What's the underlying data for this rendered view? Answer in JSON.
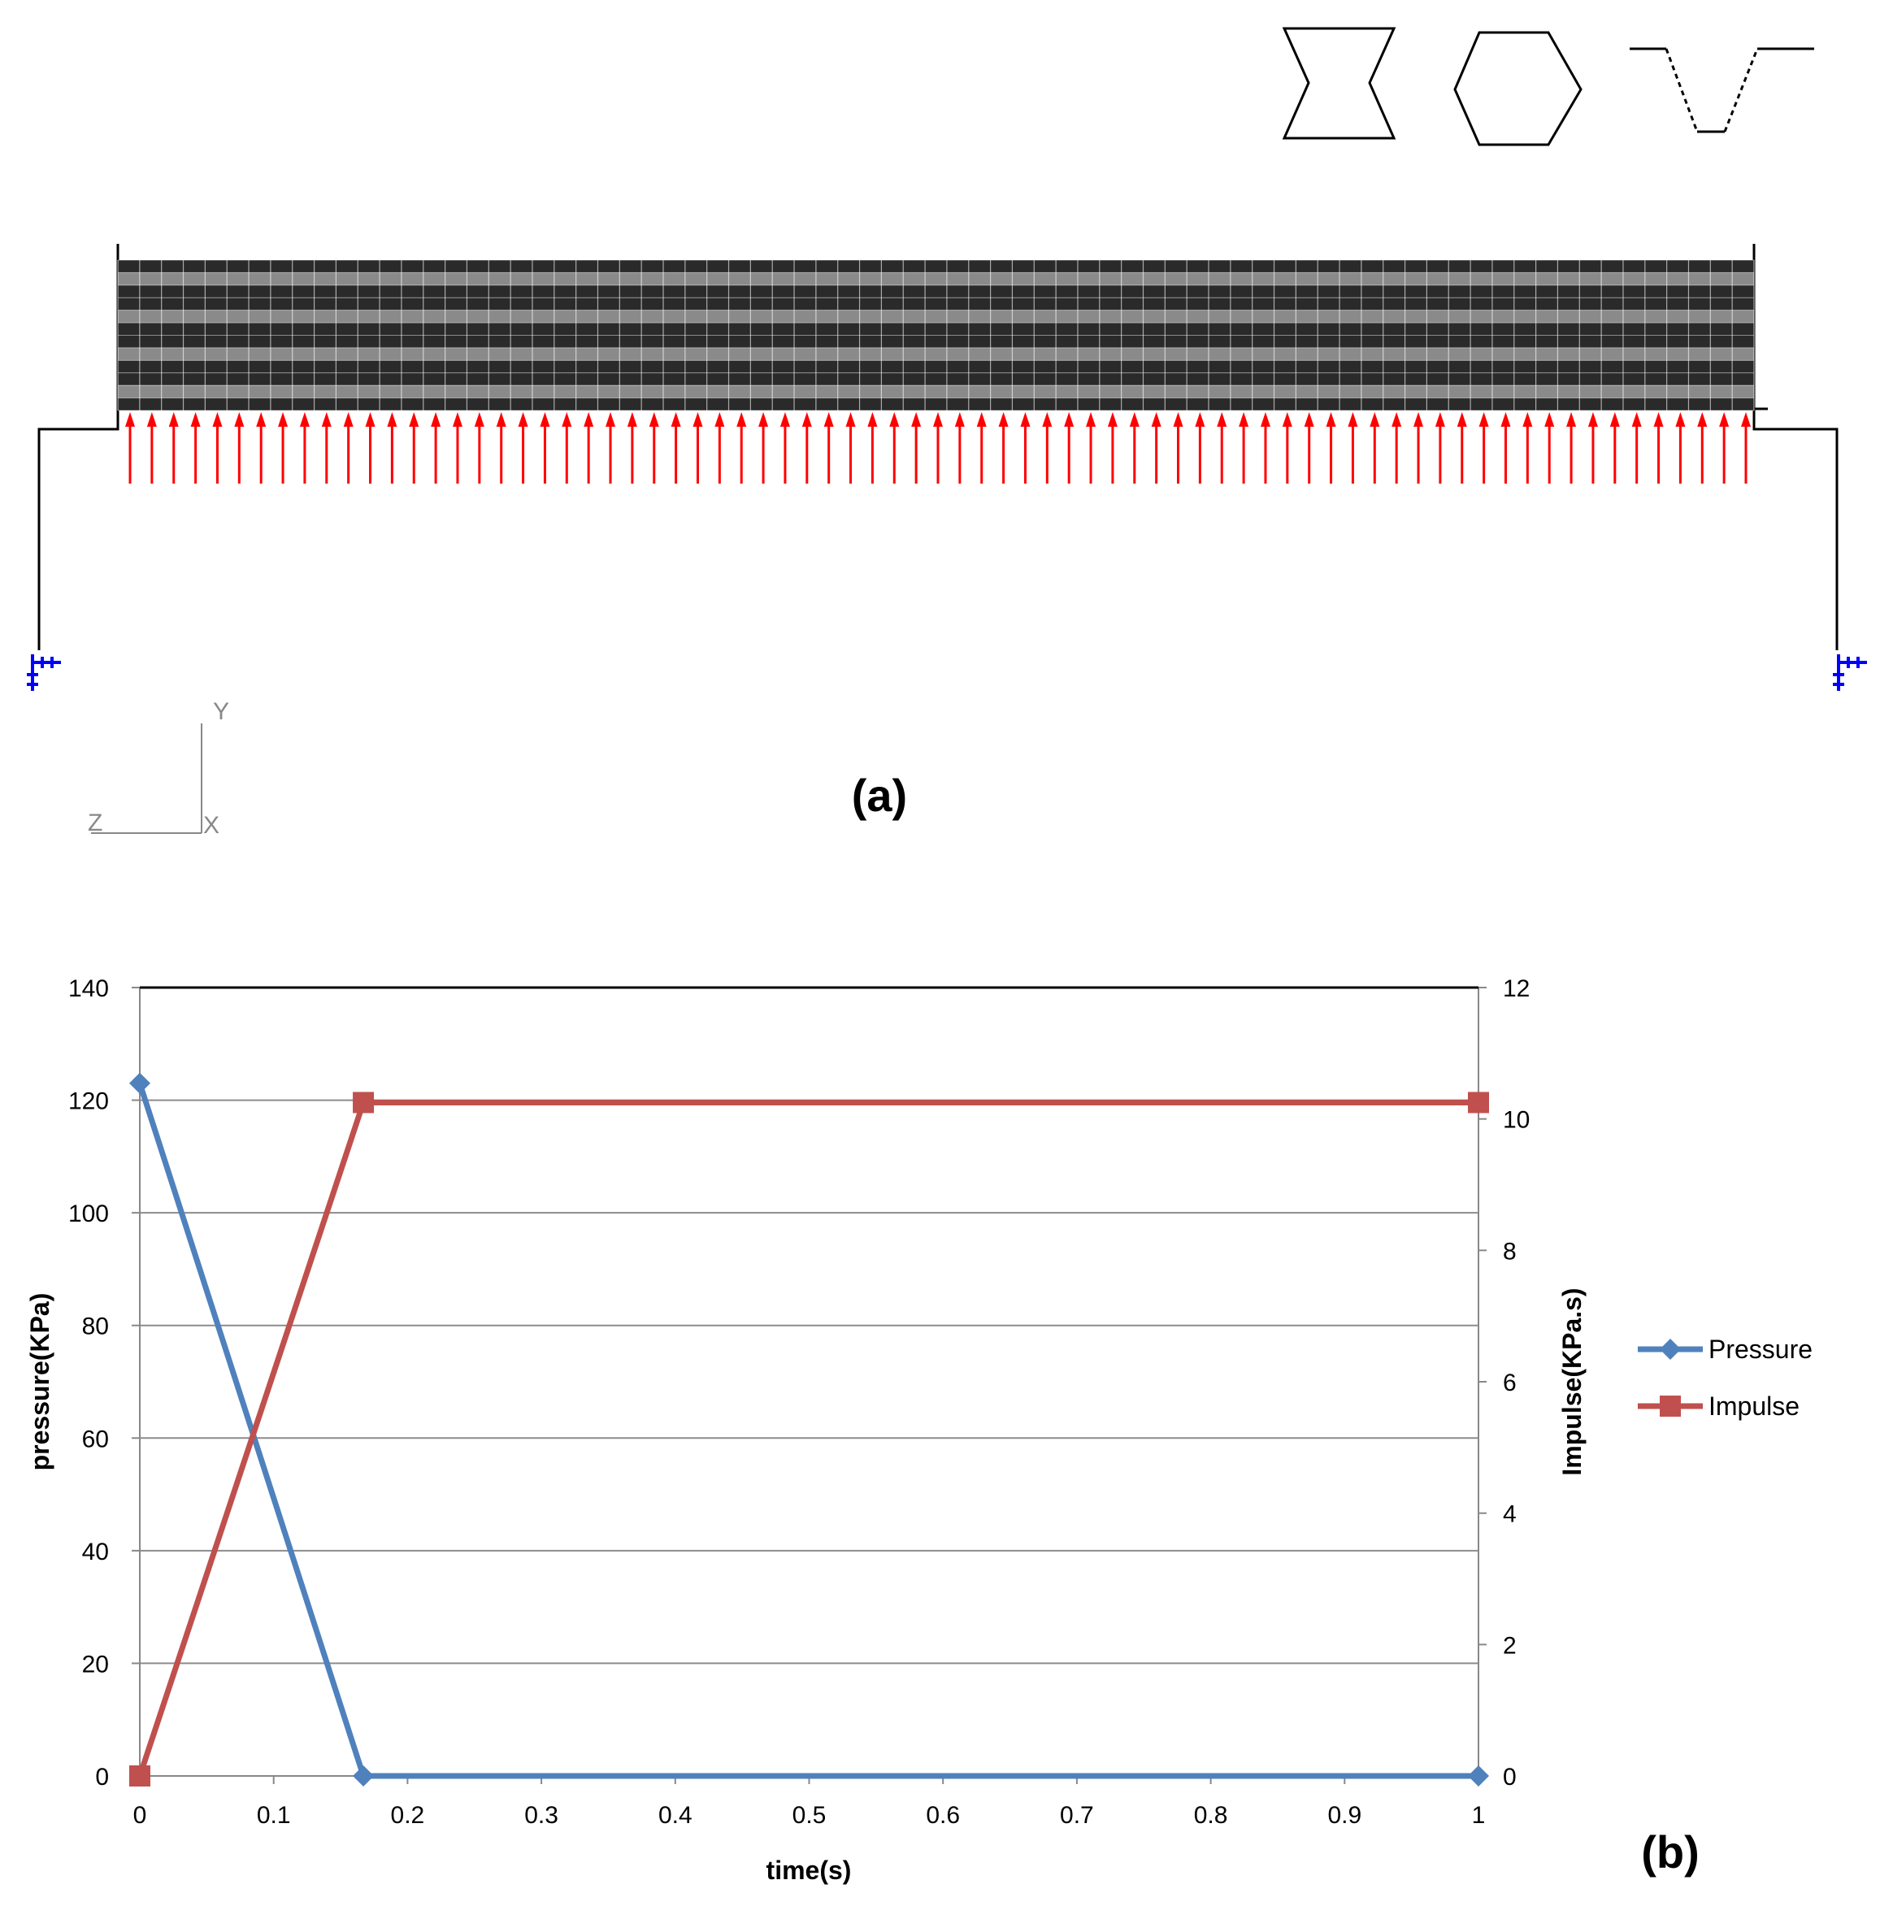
{
  "panel_a": {
    "label": "(a)",
    "axis_labels": {
      "y": "Y",
      "z": "Z",
      "x": "X"
    },
    "shapes": [
      "hourglass-cell-icon",
      "hexagon-cell-icon",
      "trapezoid-profile-icon"
    ],
    "colors": {
      "core_dark": "#2a2a2a",
      "core_light": "#8a8a8a",
      "load": "#ff0000",
      "support": "#0000ff"
    }
  },
  "panel_b": {
    "label": "(b)"
  },
  "chart_data": {
    "type": "line",
    "xlabel": "time(s)",
    "ylabel": "pressure(KPa)",
    "y2label": "Impulse(KPa.s)",
    "xlim": [
      0,
      1
    ],
    "ylim": [
      0,
      140
    ],
    "y2lim": [
      0,
      12
    ],
    "x_ticks": [
      "0",
      "0.1",
      "0.2",
      "0.3",
      "0.4",
      "0.5",
      "0.6",
      "0.7",
      "0.8",
      "0.9",
      "1"
    ],
    "y_ticks": [
      "0",
      "20",
      "40",
      "60",
      "80",
      "100",
      "120",
      "140"
    ],
    "y2_ticks": [
      "0",
      "2",
      "4",
      "6",
      "8",
      "10",
      "12"
    ],
    "grid": true,
    "legend": "right",
    "series": [
      {
        "name": "Pressure",
        "axis": "left",
        "color": "#4f81bd",
        "marker": "diamond",
        "x": [
          0,
          0.167,
          1
        ],
        "y": [
          123,
          0,
          0
        ]
      },
      {
        "name": "Impulse",
        "axis": "right",
        "color": "#c0504d",
        "marker": "square",
        "x": [
          0,
          0.167,
          1
        ],
        "y": [
          0,
          10.25,
          10.25
        ]
      }
    ]
  }
}
